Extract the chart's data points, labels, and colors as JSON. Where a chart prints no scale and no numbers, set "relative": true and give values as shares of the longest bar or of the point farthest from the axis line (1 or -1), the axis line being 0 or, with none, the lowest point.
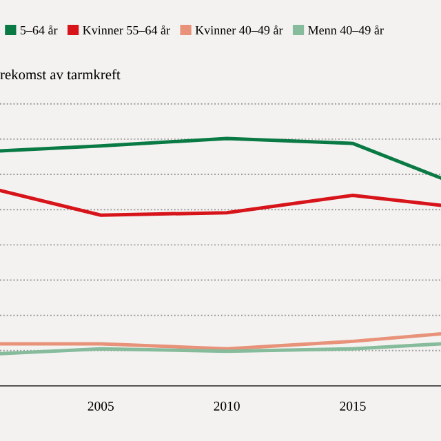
{
  "chart_data": {
    "type": "line",
    "relative": true,
    "subtitle": "rekomst av tarmkreft",
    "x": [
      2001,
      2005,
      2010,
      2015,
      2018.5
    ],
    "xlim": [
      2001,
      2018.5
    ],
    "xticks": [
      2005,
      2010,
      2015
    ],
    "series": [
      {
        "name": "5–64 år",
        "color": "#0a7a45",
        "values": [
          0.95,
          0.97,
          1,
          0.98,
          0.84
        ]
      },
      {
        "name": "Kvinner 55–64 år",
        "color": "#d7141a",
        "values": [
          0.79,
          0.69,
          0.7,
          0.77,
          0.73
        ]
      },
      {
        "name": "Kvinner 40–49 år",
        "color": "#e8927a",
        "values": [
          0.17,
          0.17,
          0.15,
          0.18,
          0.21
        ]
      },
      {
        "name": "Menn 40–49 år",
        "color": "#86bc9c",
        "values": [
          0.13,
          0.15,
          0.14,
          0.15,
          0.17
        ]
      }
    ],
    "grid": "y",
    "legend": "top left",
    "marker": "none",
    "line_style": "solid"
  }
}
